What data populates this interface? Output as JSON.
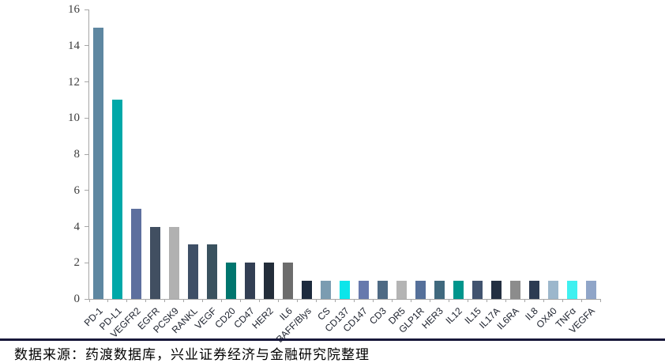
{
  "chart_data": {
    "type": "bar",
    "title": "",
    "xlabel": "",
    "ylabel": "",
    "ylim": [
      0,
      16
    ],
    "yticks": [
      0,
      2,
      4,
      6,
      8,
      10,
      12,
      14,
      16
    ],
    "grid": "off",
    "legend": "none",
    "categories": [
      "PD-1",
      "PD-L1",
      "VEGFR2",
      "EGFR",
      "PCSK9",
      "RANKL",
      "VEGF",
      "CD20",
      "CD47",
      "HER2",
      "IL6",
      "BAFF/Blys",
      "CS",
      "CD137",
      "CD147",
      "CD3",
      "DR5",
      "GLP1R",
      "HER3",
      "IL12",
      "IL15",
      "IL17A",
      "IL6RA",
      "IL8",
      "OX40",
      "TNFα",
      "VEGFA"
    ],
    "values": [
      15,
      11,
      5,
      4,
      4,
      3,
      3,
      2,
      2,
      2,
      2,
      1,
      1,
      1,
      1,
      1,
      1,
      1,
      1,
      1,
      1,
      1,
      1,
      1,
      1,
      1,
      1
    ],
    "bar_colors": [
      "#5e87a1",
      "#00a8a8",
      "#5d6f9e",
      "#414f61",
      "#b1b1b1",
      "#3e4f66",
      "#3a525f",
      "#00756e",
      "#333f54",
      "#232d3a",
      "#6c6c6c",
      "#1c2a3d",
      "#7b9cb1",
      "#0ce5ea",
      "#6779ad",
      "#4e6a84",
      "#b4b4b4",
      "#55709a",
      "#40697e",
      "#00958c",
      "#41536f",
      "#232f41",
      "#8c8c8c",
      "#2c3b52",
      "#9cb7cc",
      "#3ff0f0",
      "#90a5c8"
    ]
  },
  "source_note": "数据来源：药渡数据库，兴业证券经济与金融研究院整理",
  "colors": {
    "axis": "#a6a6a6",
    "y_tick_label": "#3d3d3d",
    "x_tick_label": "#1a1f2b",
    "separator": "#17173a",
    "background": "#ffffff"
  }
}
